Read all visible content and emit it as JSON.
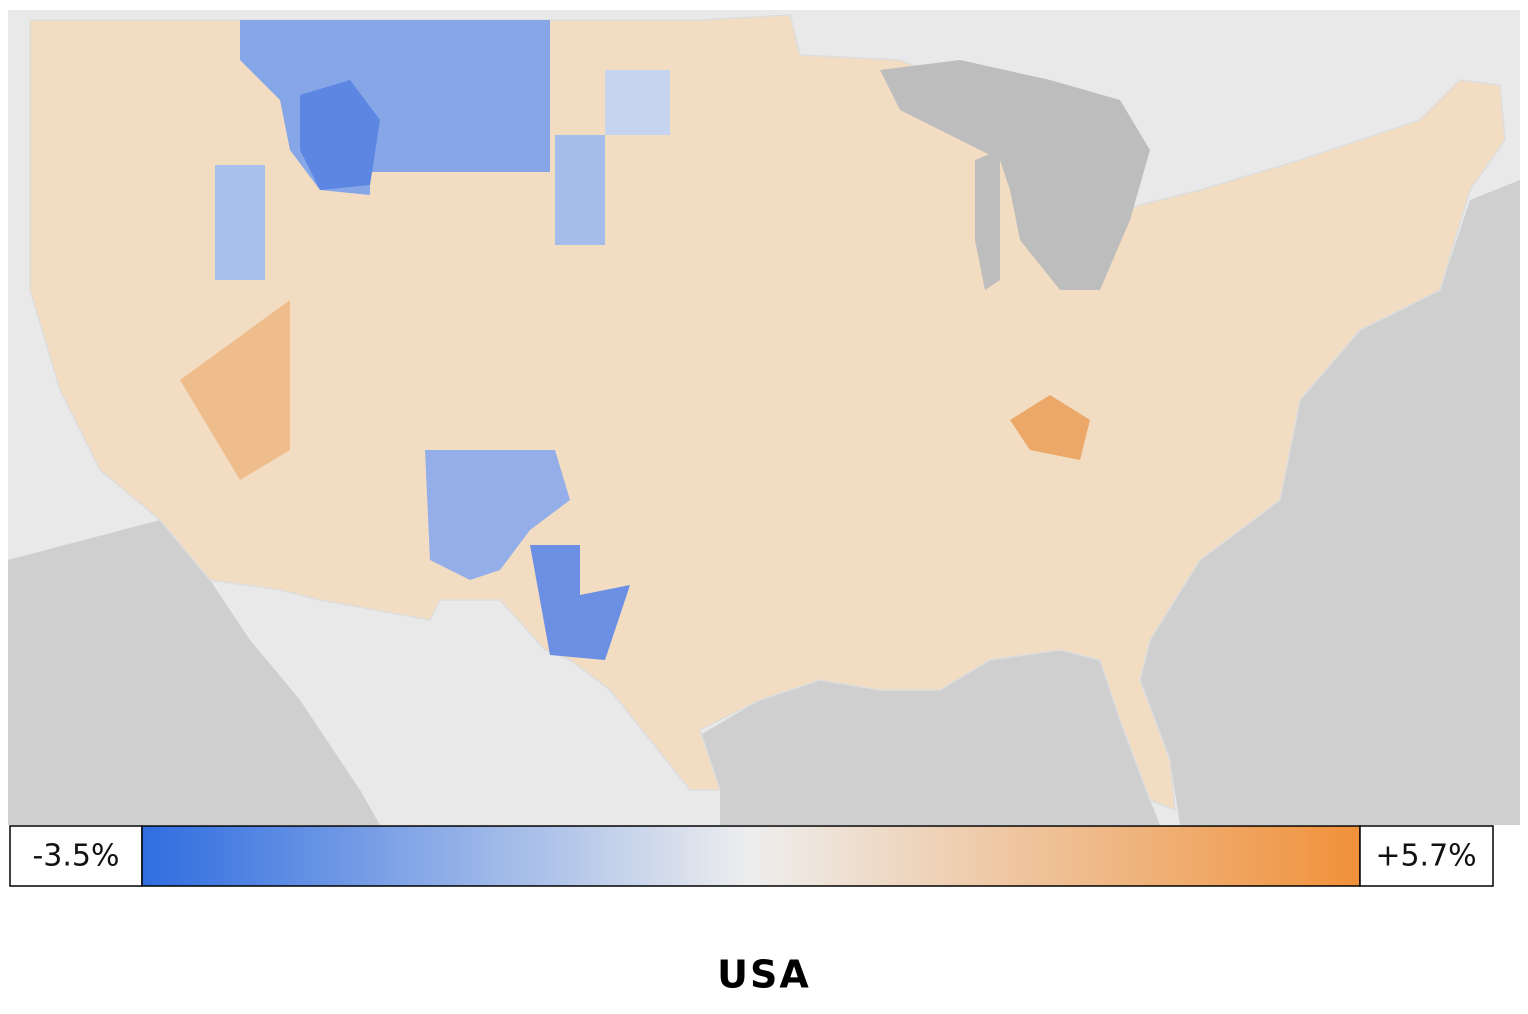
{
  "legend": {
    "min_label": "-3.5%",
    "max_label": "+5.7%",
    "colors": [
      "#2f6de0",
      "#eeeeee",
      "#f0913a"
    ]
  },
  "title": "USA"
}
